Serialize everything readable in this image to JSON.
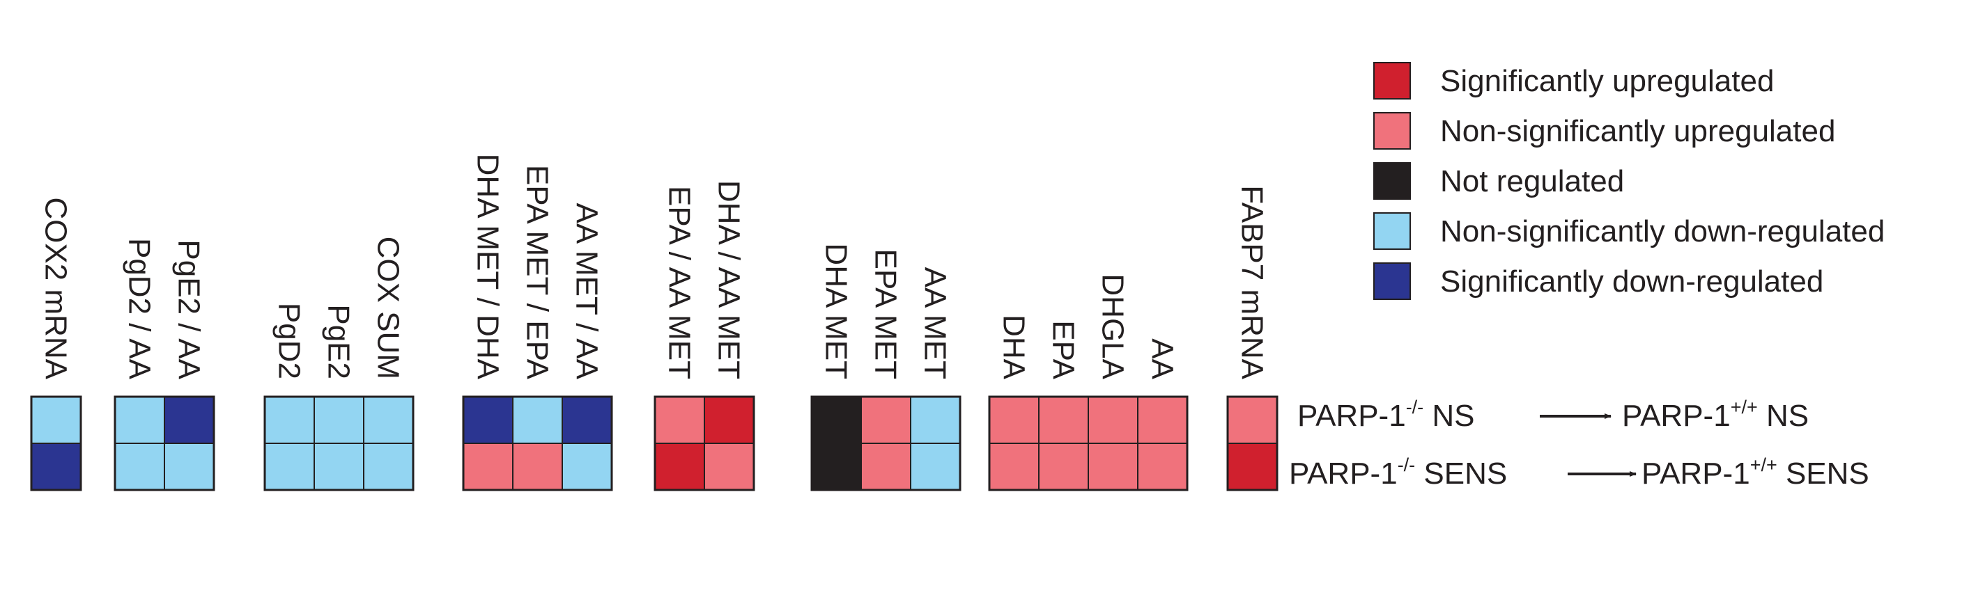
{
  "chart_data": {
    "type": "heatmap",
    "rows": [
      {
        "left": {
          "main": "PARP-1",
          "sup": "-/-",
          "rest": " NS"
        },
        "right": {
          "main": "PARP-1",
          "sup": "+/+",
          "rest": " NS"
        }
      },
      {
        "left": {
          "main": "PARP-1",
          "sup": "-/-",
          "rest": " SENS"
        },
        "right": {
          "main": "PARP-1",
          "sup": "+/+",
          "rest": " SENS"
        }
      }
    ],
    "legend": [
      {
        "key": "sig_up",
        "label": "Significantly upregulated",
        "color": "#d0202e"
      },
      {
        "key": "nonsig_up",
        "label": "Non-significantly upregulated",
        "color": "#f0727c"
      },
      {
        "key": "not",
        "label": "Not regulated",
        "color": "#231f20"
      },
      {
        "key": "nonsig_down",
        "label": "Non-significantly down-regulated",
        "color": "#93d5f2"
      },
      {
        "key": "sig_down",
        "label": "Significantly down-regulated",
        "color": "#2b3591"
      }
    ],
    "groups": [
      {
        "columns": [
          {
            "label": "COX2 mRNA",
            "values": [
              "nonsig_down",
              "sig_down"
            ]
          }
        ]
      },
      {
        "columns": [
          {
            "label": "PgD2 / AA",
            "values": [
              "nonsig_down",
              "nonsig_down"
            ]
          },
          {
            "label": "PgE2 / AA",
            "values": [
              "sig_down",
              "nonsig_down"
            ]
          }
        ]
      },
      {
        "columns": [
          {
            "label": "PgD2",
            "values": [
              "nonsig_down",
              "nonsig_down"
            ]
          },
          {
            "label": "PgE2",
            "values": [
              "nonsig_down",
              "nonsig_down"
            ]
          },
          {
            "label": "COX SUM",
            "values": [
              "nonsig_down",
              "nonsig_down"
            ]
          }
        ]
      },
      {
        "columns": [
          {
            "label": "DHA MET / DHA",
            "values": [
              "sig_down",
              "nonsig_up"
            ]
          },
          {
            "label": "EPA MET / EPA",
            "values": [
              "nonsig_down",
              "nonsig_up"
            ]
          },
          {
            "label": "AA MET / AA",
            "values": [
              "sig_down",
              "nonsig_down"
            ]
          }
        ]
      },
      {
        "columns": [
          {
            "label": "EPA / AA MET",
            "values": [
              "nonsig_up",
              "sig_up"
            ]
          },
          {
            "label": "DHA / AA MET",
            "values": [
              "sig_up",
              "nonsig_up"
            ]
          }
        ]
      },
      {
        "columns": [
          {
            "label": "DHA MET",
            "values": [
              "not",
              "not"
            ]
          },
          {
            "label": "EPA MET",
            "values": [
              "nonsig_up",
              "nonsig_up"
            ]
          },
          {
            "label": "AA MET",
            "values": [
              "nonsig_down",
              "nonsig_down"
            ]
          }
        ]
      },
      {
        "columns": [
          {
            "label": "DHA",
            "values": [
              "nonsig_up",
              "nonsig_up"
            ]
          },
          {
            "label": "EPA",
            "values": [
              "nonsig_up",
              "nonsig_up"
            ]
          },
          {
            "label": "DHGLA",
            "values": [
              "nonsig_up",
              "nonsig_up"
            ]
          },
          {
            "label": "AA",
            "values": [
              "nonsig_up",
              "nonsig_up"
            ]
          }
        ]
      },
      {
        "columns": [
          {
            "label": "FABP7 mRNA",
            "values": [
              "nonsig_up",
              "sig_up"
            ]
          }
        ]
      }
    ]
  }
}
